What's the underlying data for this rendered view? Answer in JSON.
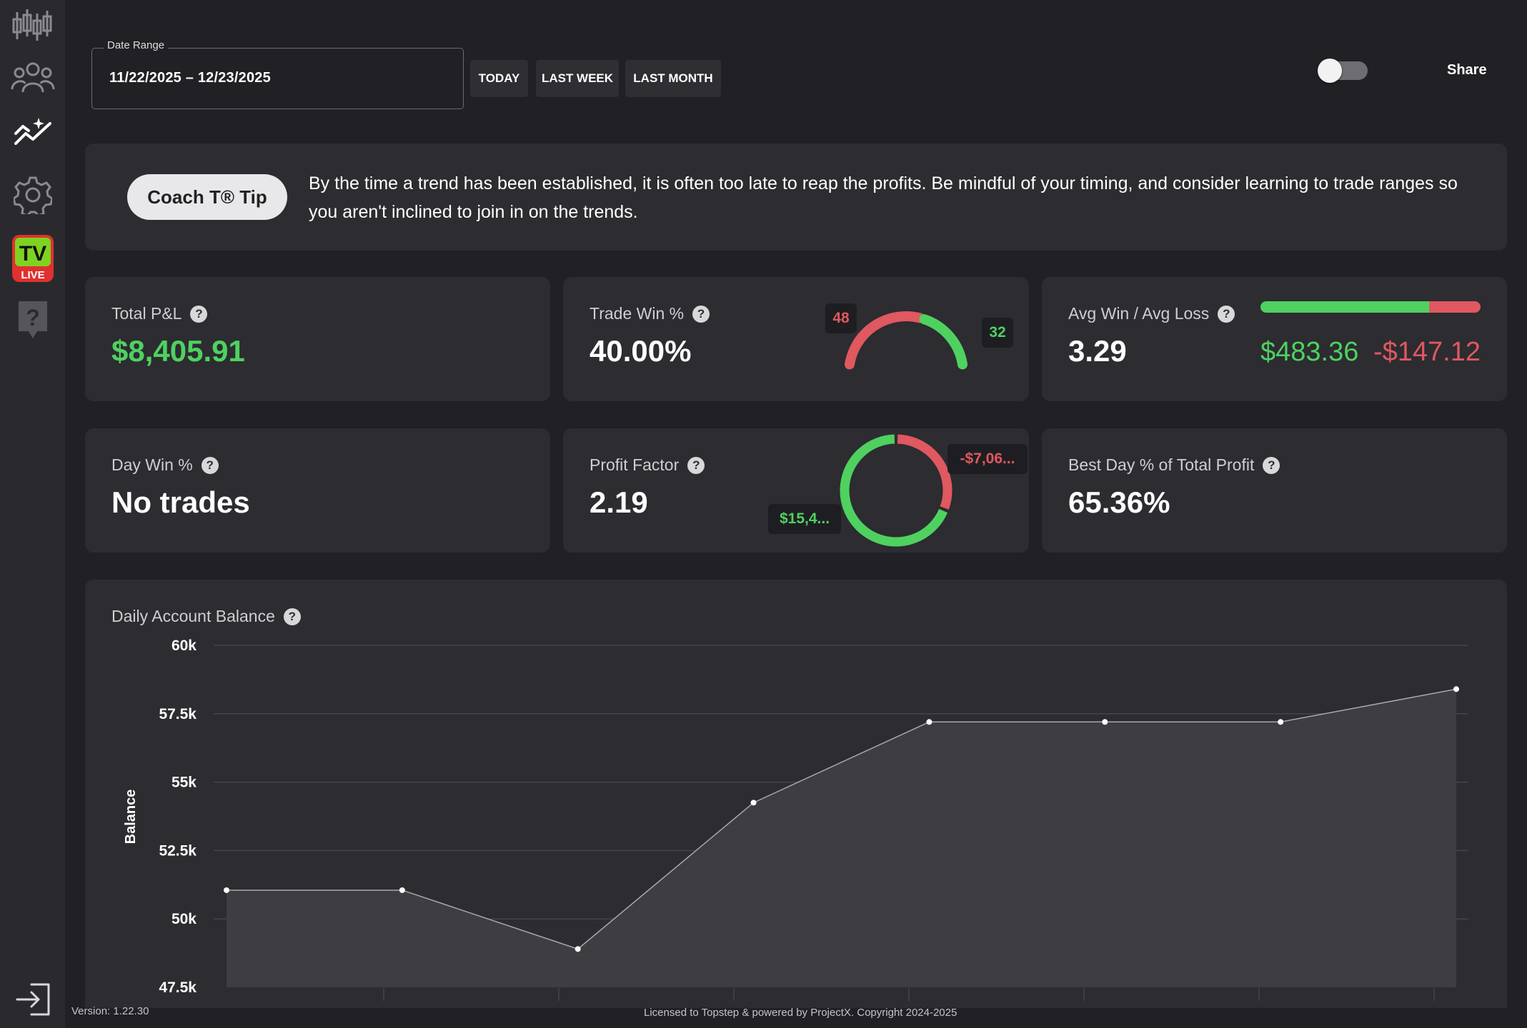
{
  "sidebar": {
    "items": [
      {
        "icon": "candlestick-chart-icon"
      },
      {
        "icon": "users-icon"
      },
      {
        "icon": "analytics-sparkle-icon"
      },
      {
        "icon": "gear-icon"
      },
      {
        "icon": "tv-live-icon",
        "tv_text": "TV",
        "live_text": "LIVE"
      },
      {
        "icon": "help-icon",
        "glyph": "?"
      }
    ],
    "logout_icon": "logout-icon"
  },
  "filters": {
    "date_range_label": "Date Range",
    "date_range_value": "11/22/2025 – 12/23/2025",
    "today_label": "TODAY",
    "last_week_label": "LAST WEEK",
    "last_month_label": "LAST MONTH",
    "share_label": "Share"
  },
  "tip": {
    "button_label": "Coach T® Tip",
    "text": "By the time a trend has been established, it is often too late to reap the profits. Be mindful of your timing, and consider learning to trade ranges so you aren't inclined to join in on the trends."
  },
  "stats": {
    "total_pnl": {
      "label": "Total P&L",
      "value": "$8,405.91"
    },
    "trade_win": {
      "label": "Trade Win %",
      "value": "40.00%",
      "losses": "48",
      "wins": "32"
    },
    "avg_win_loss": {
      "label": "Avg Win / Avg Loss",
      "value": "3.29",
      "avg_win": "$483.36",
      "avg_loss": "-$147.12",
      "win_fraction": 0.766
    },
    "day_win": {
      "label": "Day Win %",
      "value": "No trades"
    },
    "profit_factor": {
      "label": "Profit Factor",
      "value": "2.19",
      "gross_loss": "-$7,06...",
      "gross_profit": "$15,4...",
      "loss_fraction": 0.31
    },
    "best_day": {
      "label": "Best Day % of Total Profit",
      "value": "65.36%"
    }
  },
  "chart": {
    "title": "Daily Account Balance",
    "help": "?"
  },
  "colors": {
    "green": "#4fd160",
    "red": "#e05860"
  },
  "chart_data": {
    "type": "area",
    "title": "Daily Account Balance",
    "ylabel": "Balance",
    "xlabel": "",
    "ylim": [
      47500,
      60000
    ],
    "y_ticks": [
      47500,
      50000,
      52500,
      55000,
      57500,
      60000
    ],
    "y_tick_labels": [
      "47.5k",
      "50k",
      "52.5k",
      "55k",
      "57.5k",
      "60k"
    ],
    "grid": true,
    "series": [
      {
        "values": [
          51050,
          51050,
          48900,
          54250,
          57200,
          57200,
          57200,
          58400
        ]
      }
    ]
  },
  "footer": {
    "version": "Version: 1.22.30",
    "license": "Licensed to Topstep & powered by ProjectX. Copyright 2024-2025"
  }
}
